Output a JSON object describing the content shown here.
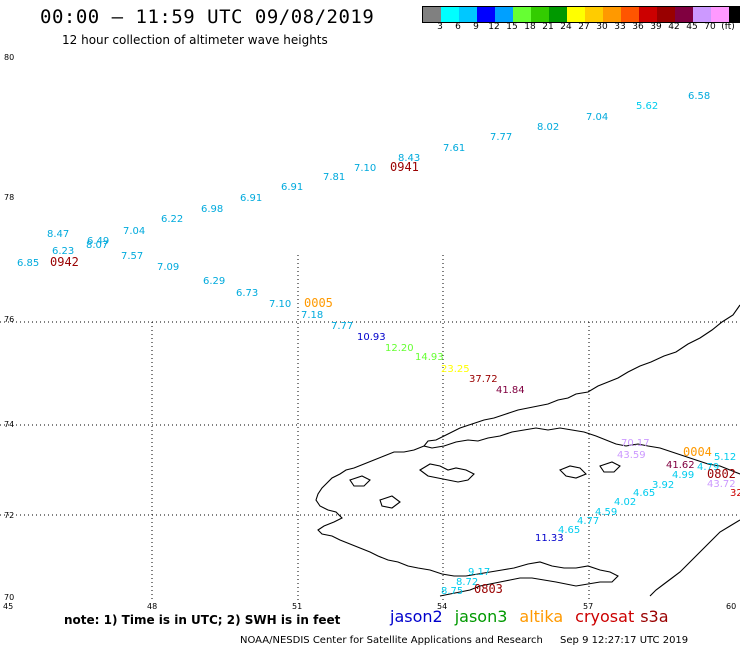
{
  "header": {
    "title": "00:00 – 11:59 UTC 09/08/2019",
    "subtitle": "12 hour collection of altimeter wave heights"
  },
  "colorbar": {
    "unit": "(ft)",
    "colors": [
      "#808080",
      "#00ffff",
      "#00c8ff",
      "#0000ff",
      "#00a0ff",
      "#66ff33",
      "#33cc00",
      "#009900",
      "#ffff00",
      "#ffcc00",
      "#ff9900",
      "#ff5500",
      "#cc0000",
      "#990000",
      "#800040",
      "#cc99ff",
      "#ff99ff",
      "#000000"
    ],
    "ticks": [
      "3",
      "6",
      "9",
      "12",
      "15",
      "18",
      "21",
      "24",
      "27",
      "30",
      "33",
      "36",
      "39",
      "42",
      "45",
      "70"
    ]
  },
  "map": {
    "lon_ticks": [
      "45",
      "48",
      "51",
      "54",
      "57",
      "60"
    ],
    "lat_ticks": [
      "70",
      "72",
      "74",
      "76",
      "78",
      "80"
    ],
    "top_left_lat": "80",
    "labels": [
      {
        "t": "6.58",
        "c": "#00aadd"
      },
      {
        "t": "5.62",
        "c": "#00ccee"
      },
      {
        "t": "7.04",
        "c": "#00aadd"
      },
      {
        "t": "8.02",
        "c": "#00aadd"
      },
      {
        "t": "7.77",
        "c": "#00aadd"
      },
      {
        "t": "7.61",
        "c": "#00aadd"
      },
      {
        "t": "8.43",
        "c": "#00aadd"
      },
      {
        "t": "7.10",
        "c": "#00aadd"
      },
      {
        "t": "7.81",
        "c": "#00aadd"
      },
      {
        "t": "6.91",
        "c": "#00aadd"
      },
      {
        "t": "6.91",
        "c": "#00aadd"
      },
      {
        "t": "6.98",
        "c": "#00aadd"
      },
      {
        "t": "6.22",
        "c": "#00aadd"
      },
      {
        "t": "7.04",
        "c": "#00aadd"
      },
      {
        "t": "8.47",
        "c": "#00aadd"
      },
      {
        "t": "6.49",
        "c": "#00aadd"
      },
      {
        "t": "8.07",
        "c": "#00aadd"
      },
      {
        "t": "6.23",
        "c": "#00aadd"
      },
      {
        "t": "6.85",
        "c": "#00aadd"
      },
      {
        "t": "7.57",
        "c": "#00aadd"
      },
      {
        "t": "7.09",
        "c": "#00aadd"
      },
      {
        "t": "6.29",
        "c": "#00aadd"
      },
      {
        "t": "6.73",
        "c": "#00aadd"
      },
      {
        "t": "7.10",
        "c": "#00aadd"
      },
      {
        "t": "7.18",
        "c": "#00aadd"
      },
      {
        "t": "7.77",
        "c": "#00aadd"
      },
      {
        "t": "10.93",
        "c": "#0000cc"
      },
      {
        "t": "12.20",
        "c": "#66ff33"
      },
      {
        "t": "14.93",
        "c": "#66ff33"
      },
      {
        "t": "23.25",
        "c": "#ffff00"
      },
      {
        "t": "37.72",
        "c": "#990000"
      },
      {
        "t": "41.84",
        "c": "#800040"
      },
      {
        "t": "70.17",
        "c": "#cc99ff"
      },
      {
        "t": "43.59",
        "c": "#cc99ff"
      },
      {
        "t": "5.12",
        "c": "#00ccee"
      },
      {
        "t": "41.62",
        "c": "#800040"
      },
      {
        "t": "4.79",
        "c": "#00ccee"
      },
      {
        "t": "4.99",
        "c": "#00ccee"
      },
      {
        "t": "43.72",
        "c": "#cc99ff"
      },
      {
        "t": "32",
        "c": "#cc0000"
      },
      {
        "t": "3.92",
        "c": "#00ccee"
      },
      {
        "t": "4.65",
        "c": "#00ccee"
      },
      {
        "t": "4.02",
        "c": "#00ccee"
      },
      {
        "t": "4.59",
        "c": "#00ccee"
      },
      {
        "t": "4.77",
        "c": "#00ccee"
      },
      {
        "t": "4.65",
        "c": "#00ccee"
      },
      {
        "t": "11.33",
        "c": "#0000cc"
      },
      {
        "t": "9.17",
        "c": "#00ccee"
      },
      {
        "t": "8.72",
        "c": "#00ccee"
      },
      {
        "t": "8.75",
        "c": "#00ccee"
      }
    ],
    "pass_ids": [
      {
        "t": "0941",
        "c": "#990000"
      },
      {
        "t": "0942",
        "c": "#990000"
      },
      {
        "t": "0005",
        "c": "#ff9900"
      },
      {
        "t": "0004",
        "c": "#ff9900"
      },
      {
        "t": "0802",
        "c": "#990000"
      },
      {
        "t": "0803",
        "c": "#990000"
      }
    ]
  },
  "note": "note:  1) Time is in UTC;  2) SWH is in feet",
  "legend": [
    {
      "name": "jason2",
      "c": "#0000cc"
    },
    {
      "name": "jason3",
      "c": "#009900"
    },
    {
      "name": "altika",
      "c": "#ff9900"
    },
    {
      "name": "cryosat",
      "c": "#cc0000"
    },
    {
      "name": "s3a",
      "c": "#990000"
    }
  ],
  "footer": {
    "credit": "NOAA/NESDIS Center for Satellite Applications and Research",
    "timestamp": "Sep  9 12:27:17 UTC 2019"
  }
}
